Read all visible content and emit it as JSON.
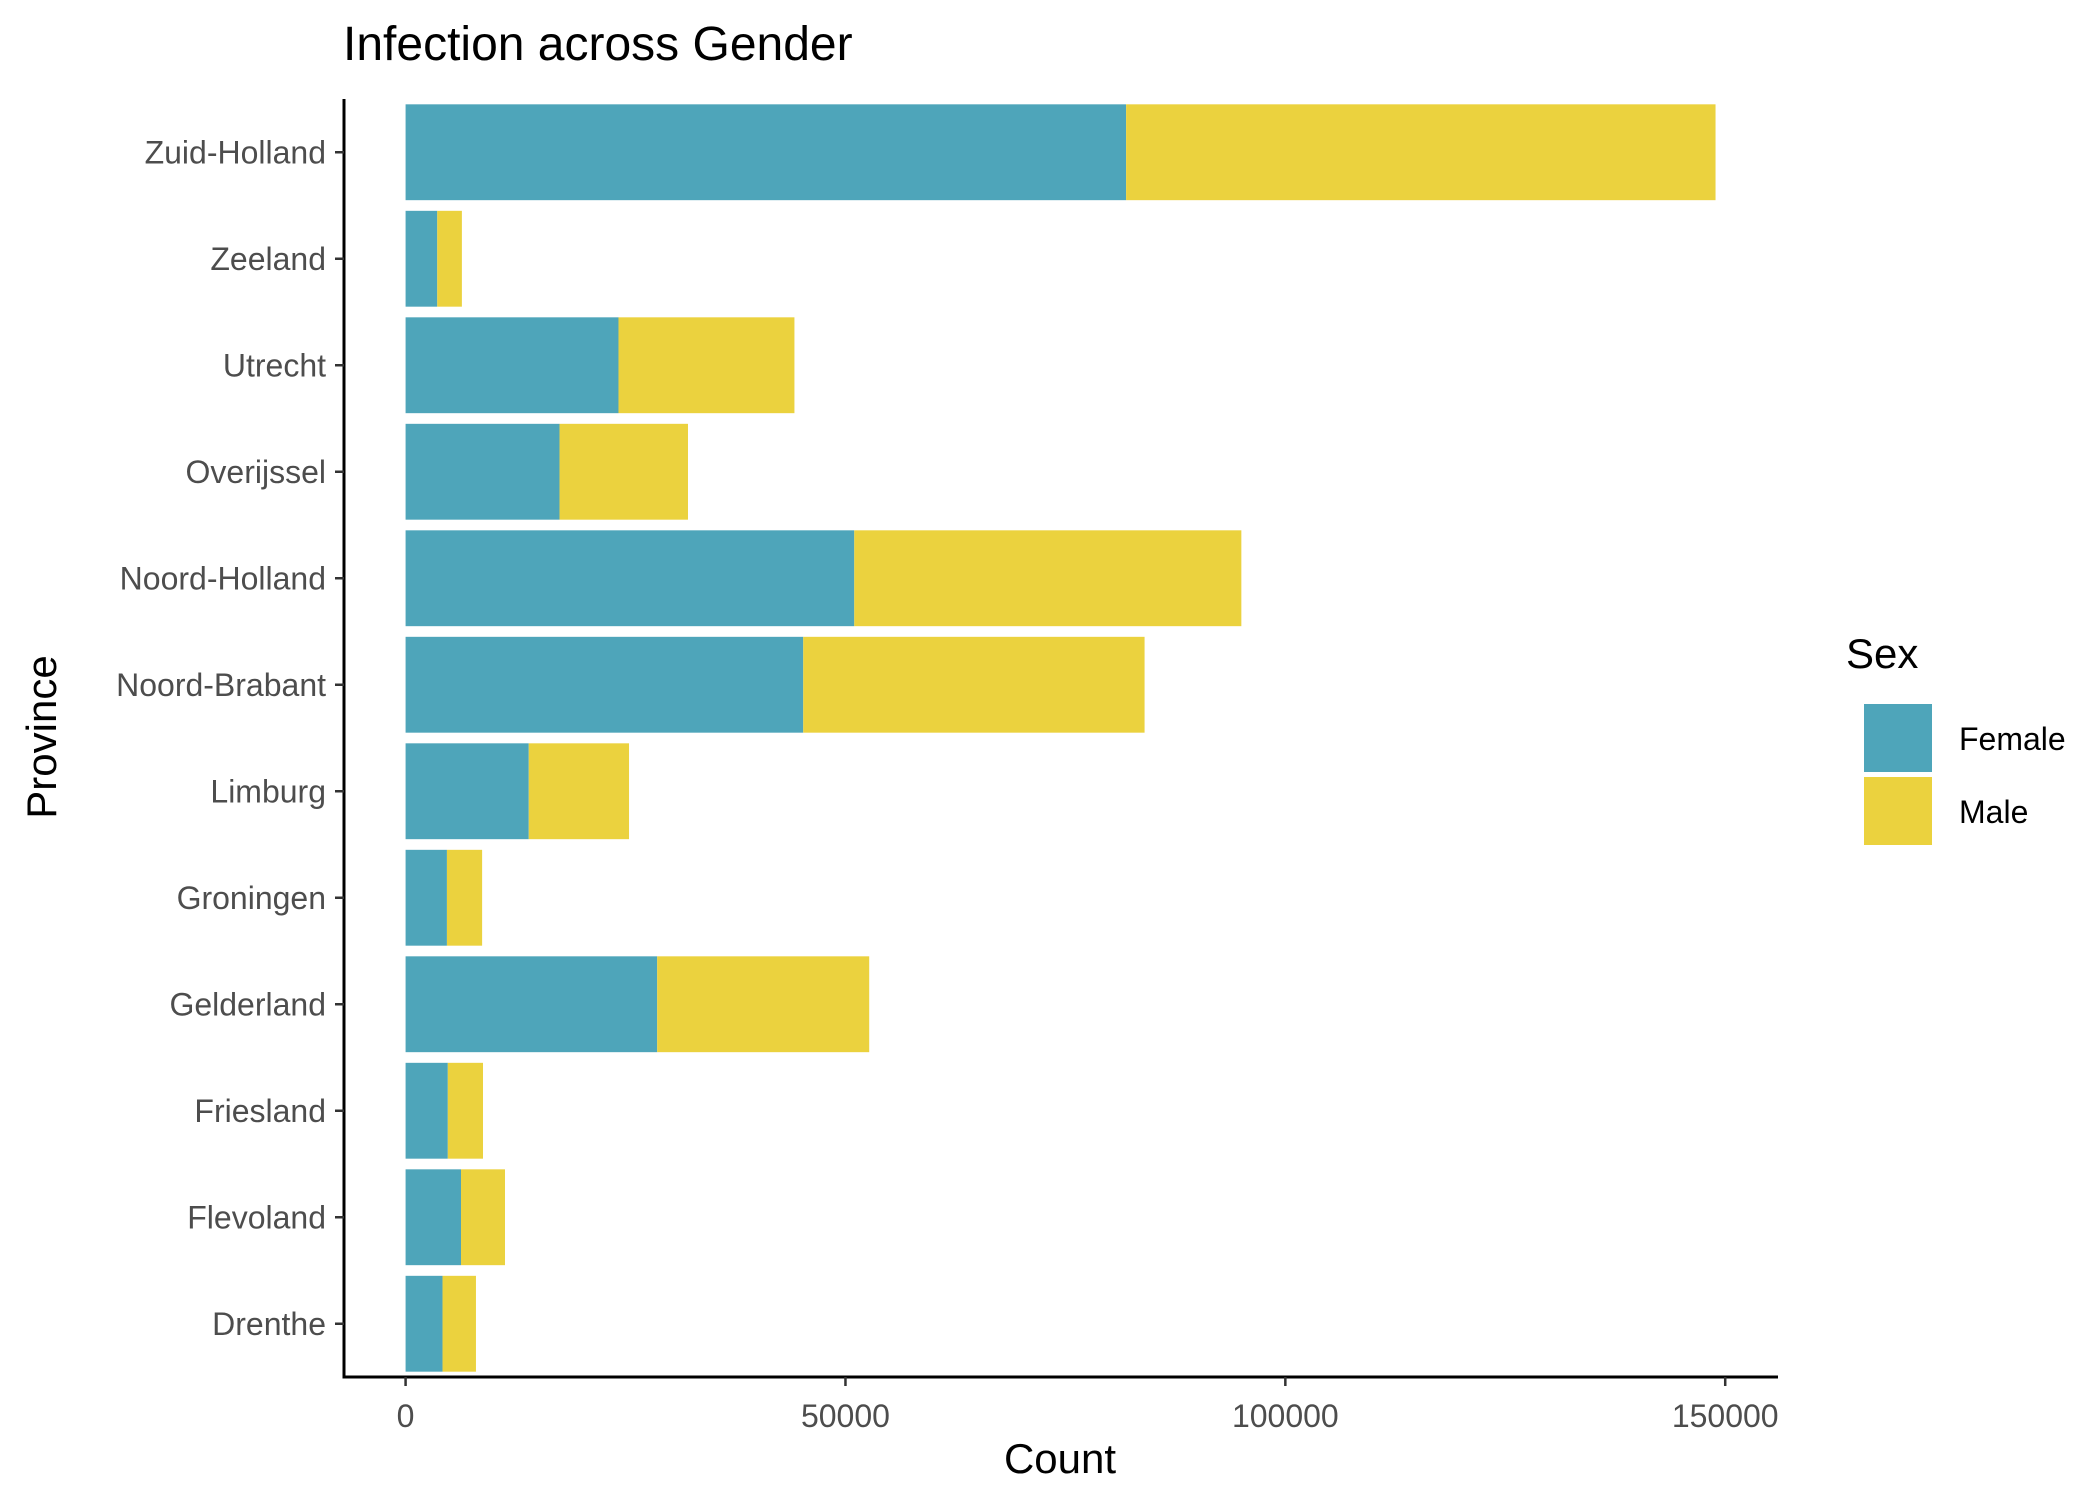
{
  "chart_data": {
    "type": "bar",
    "orientation": "horizontal",
    "stacked": true,
    "title": "Infection across Gender",
    "xlabel": "Count",
    "ylabel": "Province",
    "xlim": [
      -7000,
      156000
    ],
    "x_ticks": [
      0,
      50000,
      100000,
      150000
    ],
    "x_tick_labels": [
      "0",
      "50000",
      "100000",
      "150000"
    ],
    "categories": [
      "Zuid-Holland",
      "Zeeland",
      "Utrecht",
      "Overijssel",
      "Noord-Holland",
      "Noord-Brabant",
      "Limburg",
      "Groningen",
      "Gelderland",
      "Friesland",
      "Flevoland",
      "Drenthe"
    ],
    "series": [
      {
        "name": "Female",
        "color": "#4EA5BA",
        "values": [
          81900,
          3600,
          24200,
          17500,
          51000,
          45200,
          14000,
          4700,
          28600,
          4800,
          6300,
          4200
        ]
      },
      {
        "name": "Male",
        "color": "#EBD23E",
        "values": [
          67000,
          2800,
          20000,
          14600,
          44000,
          38800,
          11400,
          4000,
          24100,
          4000,
          5000,
          3800
        ]
      }
    ],
    "legend": {
      "title": "Sex",
      "position": "right"
    },
    "grid": false
  }
}
